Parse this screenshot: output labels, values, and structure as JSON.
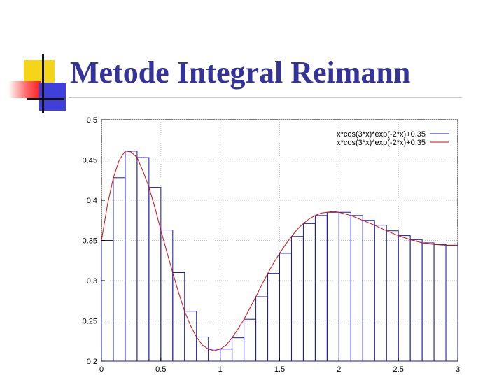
{
  "title": "Metode Integral Reimann",
  "colors": {
    "title": "#333399",
    "bars": "#1a1aa8",
    "curve": "#cc1111",
    "grid": "#b0b0b0",
    "deco_yellow": "#f5d51a",
    "deco_red": "#ff1d1d",
    "deco_blue": "#3f3fd9"
  },
  "chart_data": {
    "type": "bar",
    "title": "",
    "xlabel": "",
    "ylabel": "",
    "xlim": [
      0,
      3
    ],
    "ylim": [
      0.2,
      0.5
    ],
    "grid": true,
    "legend_position": "top-right",
    "x_ticks": [
      "0",
      "0.5",
      "1",
      "1.5",
      "2",
      "2.5",
      "3"
    ],
    "y_ticks": [
      "0.2",
      "0.25",
      "0.3",
      "0.35",
      "0.4",
      "0.45",
      "0.5"
    ],
    "legend": [
      "x*cos(3*x)*exp(-2*x)+0.35",
      "x*cos(3*x)*exp(-2*x)+0.35"
    ],
    "bin_width": 0.1,
    "bar_left_edges": [
      0,
      0.1,
      0.2,
      0.3,
      0.4,
      0.5,
      0.6,
      0.7,
      0.8,
      0.9,
      1.0,
      1.1,
      1.2,
      1.3,
      1.4,
      1.5,
      1.6,
      1.7,
      1.8,
      1.9,
      2.0,
      2.1,
      2.2,
      2.3,
      2.4,
      2.5,
      2.6,
      2.7,
      2.8,
      2.9
    ],
    "bar_values": [
      0.35,
      0.428,
      0.461,
      0.453,
      0.416,
      0.363,
      0.31,
      0.262,
      0.23,
      0.215,
      0.215,
      0.229,
      0.252,
      0.28,
      0.309,
      0.334,
      0.355,
      0.371,
      0.381,
      0.385,
      0.385,
      0.381,
      0.375,
      0.369,
      0.362,
      0.356,
      0.351,
      0.347,
      0.345,
      0.344
    ],
    "curve_x": [
      0,
      0.05,
      0.1,
      0.15,
      0.2,
      0.25,
      0.3,
      0.35,
      0.4,
      0.45,
      0.5,
      0.55,
      0.6,
      0.65,
      0.7,
      0.75,
      0.8,
      0.85,
      0.9,
      0.95,
      1.0,
      1.05,
      1.1,
      1.15,
      1.2,
      1.25,
      1.3,
      1.35,
      1.4,
      1.45,
      1.5,
      1.55,
      1.6,
      1.65,
      1.7,
      1.75,
      1.8,
      1.85,
      1.9,
      1.95,
      2.0,
      2.1,
      2.2,
      2.3,
      2.4,
      2.5,
      2.6,
      2.7,
      2.8,
      2.9,
      3.0
    ],
    "curve_y": [
      0.35,
      0.394,
      0.428,
      0.45,
      0.461,
      0.46,
      0.453,
      0.436,
      0.416,
      0.391,
      0.363,
      0.336,
      0.31,
      0.285,
      0.262,
      0.244,
      0.23,
      0.22,
      0.215,
      0.213,
      0.215,
      0.22,
      0.229,
      0.24,
      0.252,
      0.266,
      0.28,
      0.295,
      0.309,
      0.322,
      0.334,
      0.345,
      0.355,
      0.364,
      0.371,
      0.377,
      0.381,
      0.384,
      0.385,
      0.386,
      0.385,
      0.381,
      0.375,
      0.369,
      0.362,
      0.356,
      0.351,
      0.347,
      0.345,
      0.344,
      0.344
    ]
  }
}
